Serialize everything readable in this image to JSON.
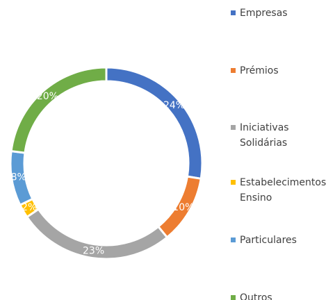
{
  "chart_data": {
    "type": "donut",
    "categories": [
      "Empresas",
      "Prémios",
      "Iniciativas Solidárias",
      "Estabelecimentos Ensino",
      "Particulares",
      "Outros"
    ],
    "values": [
      24,
      10,
      23,
      2,
      8,
      20
    ],
    "value_labels": [
      "24%",
      "10%",
      "23%",
      "2%",
      "8%",
      "20%"
    ],
    "colors": [
      "#4472c4",
      "#ed7d31",
      "#a5a5a5",
      "#ffc000",
      "#5b9bd5",
      "#70ad47"
    ],
    "legend": "right"
  }
}
